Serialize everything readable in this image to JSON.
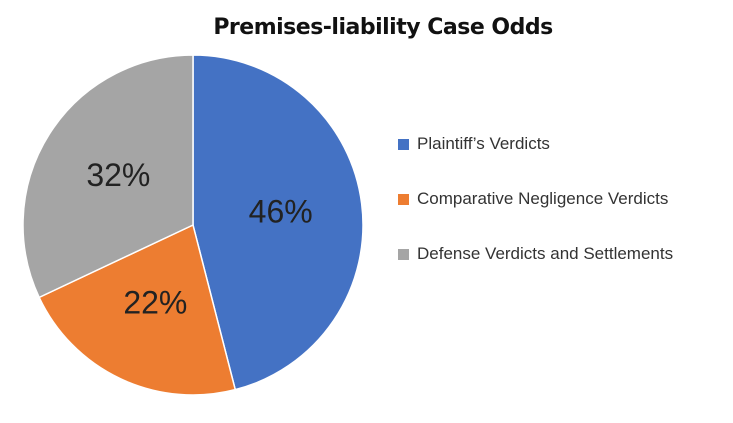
{
  "chart_data": {
    "type": "pie",
    "title": "Premises-liability Case Odds",
    "categories": [
      "Plaintiff’s Verdicts",
      "Comparative Negligence Verdicts",
      "Defense Verdicts and Settlements"
    ],
    "values": [
      46,
      22,
      32
    ],
    "value_labels": [
      "46%",
      "22%",
      "32%"
    ],
    "colors": [
      "#4472c4",
      "#ed7d31",
      "#a5a5a5"
    ],
    "legend": "right"
  }
}
